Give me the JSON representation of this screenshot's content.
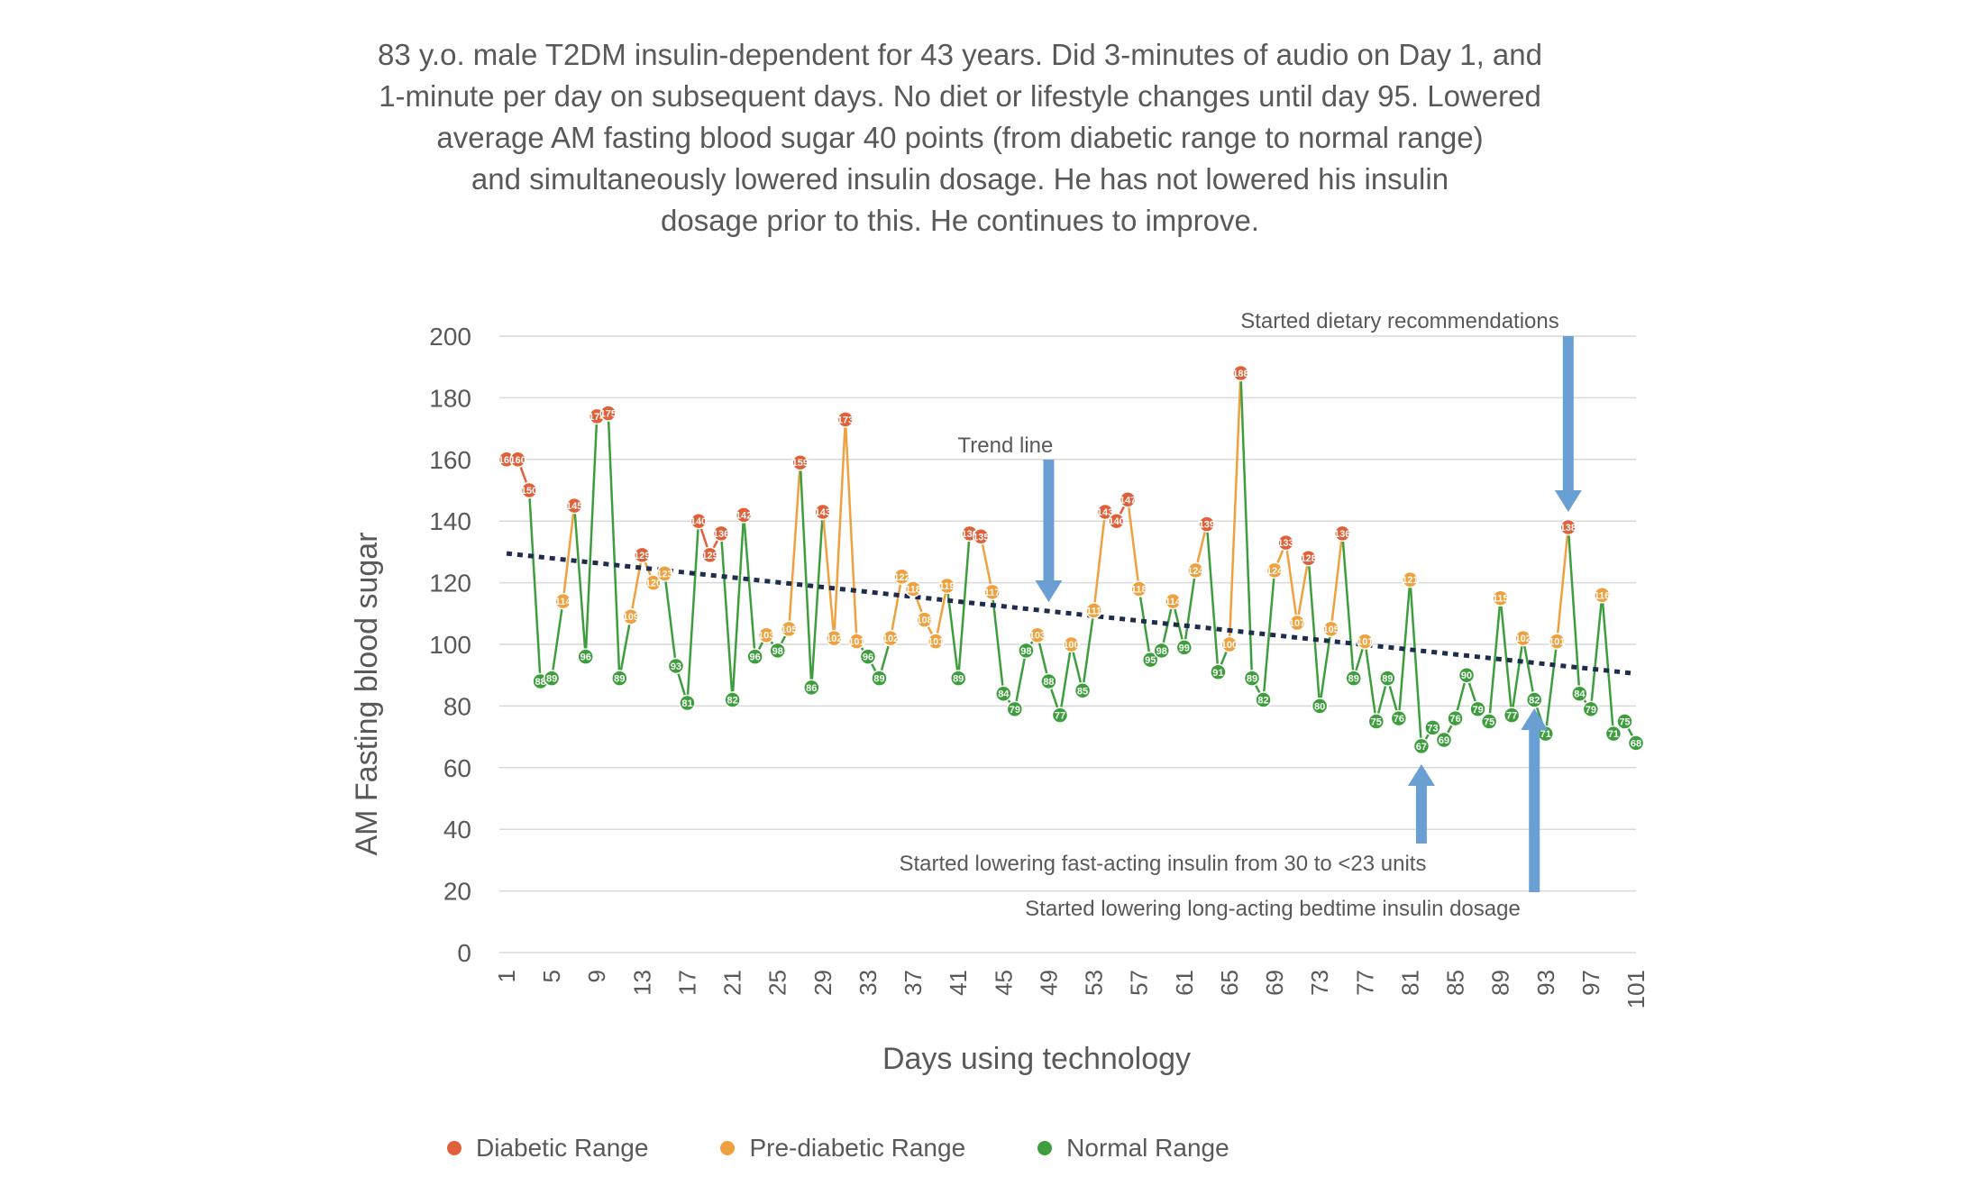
{
  "title_lines": [
    "83 y.o. male T2DM insulin-dependent for 43 years. Did 3-minutes of audio on Day 1, and",
    "1-minute per day on subsequent days. No diet or lifestyle changes until day 95. Lowered",
    "average AM fasting blood sugar 40 points (from diabetic range to normal range)",
    "and simultaneously lowered insulin dosage. He has not lowered his insulin",
    "dosage prior to this. He continues to improve."
  ],
  "colors": {
    "diabetic": "#E0603A",
    "prediabetic": "#F0A13F",
    "normal": "#3E9E3E",
    "trend": "#1F2D4D",
    "arrow": "#6A9FD4",
    "grid": "#D9D9D9"
  },
  "legend": [
    {
      "label": "Diabetic Range",
      "color": "#E0603A"
    },
    {
      "label": "Pre-diabetic Range",
      "color": "#F0A13F"
    },
    {
      "label": "Normal Range",
      "color": "#3E9E3E"
    }
  ],
  "annotations": {
    "trend": "Trend line",
    "dietary": "Started dietary recommendations",
    "fast_insulin": "Started lowering fast-acting insulin from 30 to <23 units",
    "long_insulin": "Started lowering long-acting bedtime insulin dosage"
  },
  "chart_data": {
    "type": "line",
    "xlabel": "Days using technology",
    "ylabel": "AM Fasting blood sugar",
    "ylim": [
      0,
      200
    ],
    "yticks": [
      0,
      20,
      40,
      60,
      80,
      100,
      120,
      140,
      160,
      180,
      200
    ],
    "xticks": [
      1,
      5,
      9,
      13,
      17,
      21,
      25,
      29,
      33,
      37,
      41,
      45,
      49,
      53,
      57,
      61,
      65,
      69,
      73,
      77,
      81,
      85,
      89,
      93,
      97,
      101
    ],
    "xlim": [
      1,
      101
    ],
    "grid": "horizontal",
    "thresholds": {
      "diabetic_min": 126,
      "prediabetic_min": 100
    },
    "trend_line": {
      "start": [
        1,
        129.5
      ],
      "end": [
        101,
        90.5
      ]
    },
    "values": [
      160,
      160,
      150,
      88,
      89,
      114,
      145,
      96,
      174,
      175,
      89,
      109,
      129,
      120,
      123,
      93,
      81,
      140,
      129,
      136,
      82,
      142,
      96,
      103,
      98,
      105,
      159,
      86,
      143,
      102,
      173,
      101,
      96,
      89,
      102,
      122,
      118,
      108,
      101,
      119,
      89,
      136,
      135,
      117,
      84,
      79,
      98,
      103,
      88,
      77,
      100,
      85,
      111,
      143,
      140,
      147,
      118,
      95,
      98,
      114,
      99,
      124,
      139,
      91,
      100,
      188,
      89,
      82,
      124,
      133,
      107,
      128,
      80,
      105,
      136,
      89,
      101,
      75,
      89,
      76,
      121,
      67,
      73,
      69,
      76,
      90,
      79,
      75,
      115,
      77,
      102,
      82,
      71,
      101,
      138,
      84,
      79,
      116,
      71,
      75,
      68
    ]
  },
  "annotation_days": {
    "trend": 49,
    "dietary": 95,
    "fast_insulin": 82,
    "long_insulin": 92
  }
}
